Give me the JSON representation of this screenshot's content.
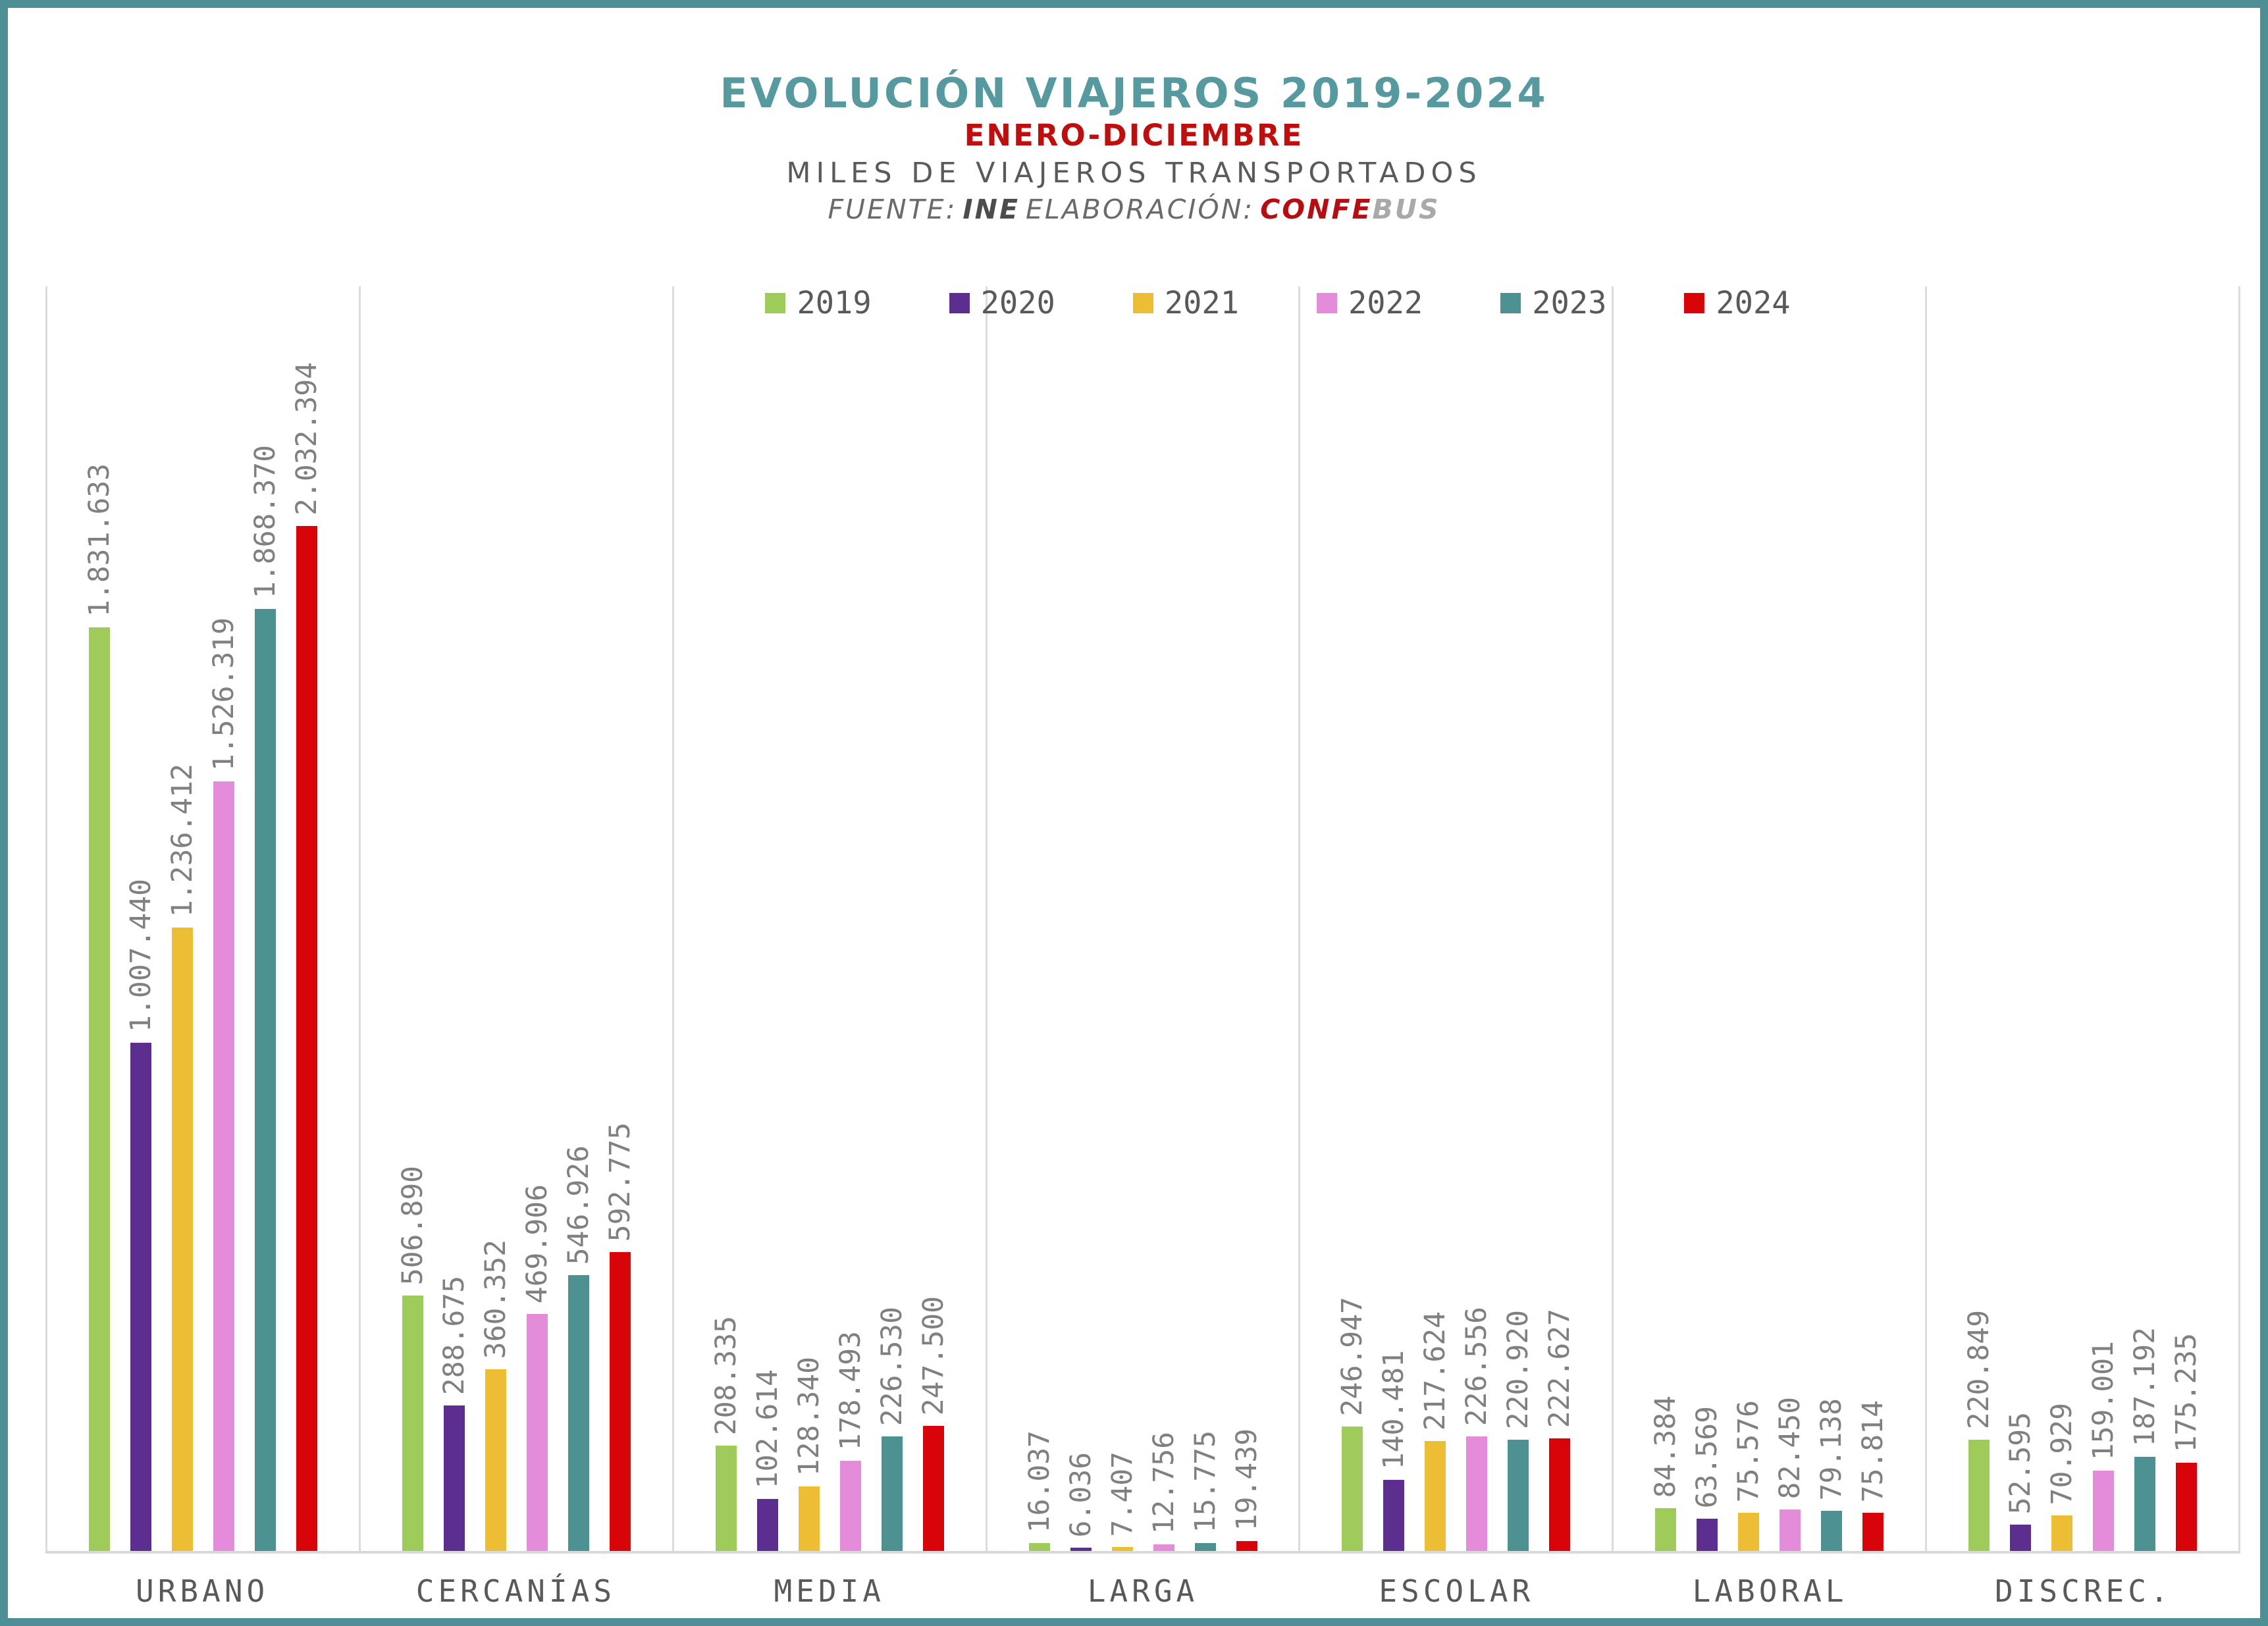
{
  "header": {
    "title": "EVOLUCIÓN VIAJEROS 2019-2024",
    "period": "ENERO-DICIEMBRE",
    "units": "MILES DE VIAJEROS TRANSPORTADOS",
    "source": {
      "label": "FUENTE:",
      "ine": "INE",
      "elaboracion": "ELABORACIÓN:",
      "confe": "CONFE",
      "bus": "BUS"
    }
  },
  "palette": {
    "title_teal": "#569AA0",
    "period_red": "#C00D0D",
    "units_gray": "#5A5A5A",
    "source_gray": "#6A6A6A",
    "source_bus_gray": "#A9A9AB",
    "frame_border_teal": "#4E8F96",
    "gridline": "#DCDCDC",
    "axis_line": "#D9D9D9",
    "value_label_gray": "#808080",
    "axis_label_gray": "#595959"
  },
  "chart_data": {
    "type": "bar",
    "title": "EVOLUCIÓN VIAJEROS 2019-2024",
    "subtitle": "ENERO-DICIEMBRE",
    "units_note": "MILES DE VIAJEROS TRANSPORTADOS",
    "source_note": "FUENTE: INE ELABORACIÓN: CONFEBUS",
    "categories": [
      "URBANO",
      "CERCANÍAS",
      "MEDIA",
      "LARGA",
      "ESCOLAR",
      "LABORAL",
      "DISCREC."
    ],
    "series": [
      {
        "name": "2019",
        "color": "#9FCB5B",
        "values": [
          1831633,
          506890,
          208335,
          16037,
          246947,
          84384,
          220849
        ]
      },
      {
        "name": "2020",
        "color": "#5B2E90",
        "values": [
          1007440,
          288675,
          102614,
          6036,
          140481,
          63569,
          52595
        ]
      },
      {
        "name": "2021",
        "color": "#EDBD33",
        "values": [
          1236412,
          360352,
          128340,
          7407,
          217624,
          75576,
          70929
        ]
      },
      {
        "name": "2022",
        "color": "#E48CD9",
        "values": [
          1526319,
          469906,
          178493,
          12756,
          226556,
          82450,
          159001
        ]
      },
      {
        "name": "2023",
        "color": "#4E9193",
        "values": [
          1868370,
          546926,
          226530,
          15775,
          220920,
          79138,
          187192
        ]
      },
      {
        "name": "2024",
        "color": "#D9040A",
        "values": [
          2032394,
          592775,
          247500,
          19439,
          222627,
          75814,
          175235
        ]
      }
    ],
    "ylim": [
      0,
      2032394
    ],
    "value_label_format": "thousands separated by dots, rotated 90°",
    "legend_position": "top",
    "grid": "vertical separators between category groups, bottom axis line only"
  }
}
